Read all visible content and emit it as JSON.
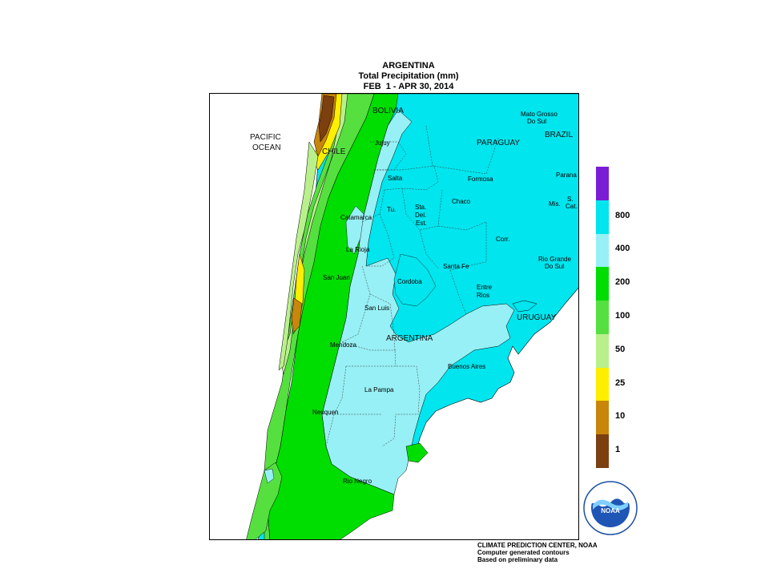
{
  "title": {
    "line1": "ARGENTINA",
    "line2": "Total Precipitation (mm)",
    "line3": "FEB  1 - APR 30, 2014"
  },
  "map_labels": {
    "pacific_line1": "PACIFIC",
    "pacific_line2": "OCEAN",
    "bolivia": "BOLIVIA",
    "chile": "CHILE",
    "paraguay": "PARAGUAY",
    "brazil": "BRAZIL",
    "uruguay": "URUGUAY",
    "argentina": "ARGENTINA",
    "mato_grosso_line1": "Mato Grosso",
    "mato_grosso_line2": "Do Sul",
    "parana": "Parana",
    "sta_cat_line1": "S.",
    "sta_cat_line2": "Cat.",
    "rio_grande_line1": "Rio Grande",
    "rio_grande_line2": "Do Sul",
    "jujuy": "Jujuy",
    "salta": "Salta",
    "formosa": "Formosa",
    "chaco": "Chaco",
    "misiones": "Mis.",
    "tucuman": "Tu.",
    "sde_line1": "Sta.",
    "sde_line2": "Del.",
    "sde_line3": "Est.",
    "catamarca": "Catamarca",
    "corrientes": "Corr.",
    "la_rioja": "La Rioja",
    "santa_fe": "Santa Fe",
    "cordoba": "Cordoba",
    "san_juan": "San Juan",
    "entre_rios_line1": "Entre",
    "entre_rios_line2": "Rios",
    "san_luis": "San Luis",
    "mendoza": "Mendoza",
    "buenos_aires": "Buenos Aires",
    "la_pampa": "La Pampa",
    "neuquen": "Neuquen",
    "rio_negro": "Rio Negro"
  },
  "legend": {
    "bins": [
      {
        "label": "",
        "color": "#7a1ed6"
      },
      {
        "label": "800",
        "color": "#00e5ee"
      },
      {
        "label": "400",
        "color": "#97f0f5"
      },
      {
        "label": "200",
        "color": "#00dd00"
      },
      {
        "label": "100",
        "color": "#55e040"
      },
      {
        "label": "50",
        "color": "#b9f08c"
      },
      {
        "label": "25",
        "color": "#ffee00"
      },
      {
        "label": "10",
        "color": "#c8860a"
      },
      {
        "label": "1",
        "color": "#7b3f10"
      }
    ]
  },
  "colors": {
    "above_400": "#00e5ee",
    "range_200_400": "#97f0f5",
    "range_100_200": "#00dd00",
    "range_50_100": "#55e040",
    "range_25_50": "#b9f08c",
    "range_10_25": "#ffee00",
    "range_1_10": "#c8860a",
    "below_1": "#7b3f10"
  },
  "logo": {
    "text": "NOAA",
    "ring_text": "NATIONAL OCEANIC AND ATMOSPHERIC ADMINISTRATION · U.S. DEPARTMENT OF COMMERCE"
  },
  "footer": {
    "line1": "CLIMATE PREDICTION CENTER, NOAA",
    "line2": "Computer generated contours",
    "line3": "Based on preliminary data"
  }
}
